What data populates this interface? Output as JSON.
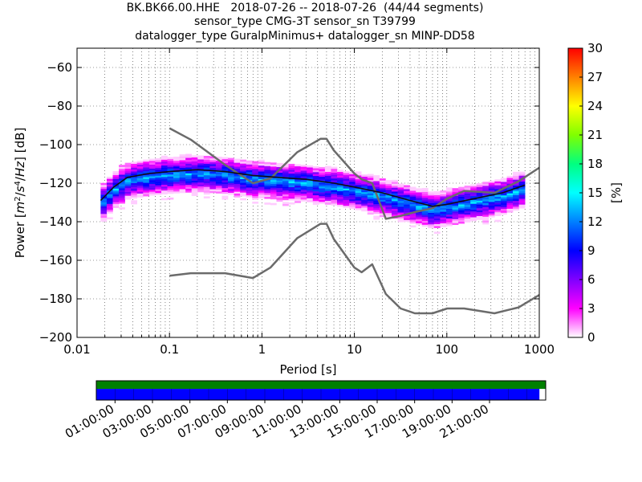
{
  "header": {
    "title_line1": "BK.BK66.00.HHE   2018-07-26 -- 2018-07-26  (44/44 segments)",
    "title_line2": "sensor_type CMG-3T sensor_sn T39799",
    "title_line3": "datalogger_type GuralpMinimus+ datalogger_sn MINP-DD58"
  },
  "colors": {
    "noise_model": "#6b6b6b",
    "mean_curve": "#111111",
    "coverage_available": "#008000",
    "coverage_data": "#0000ff"
  },
  "chart_data": [
    {
      "type": "heatmap",
      "xlabel": "Period [s]",
      "ylabel": "Power [m²/s⁴/Hz] [dB]",
      "xscale": "log",
      "xlim": [
        0.01,
        1000
      ],
      "ylim": [
        -200,
        -50
      ],
      "x_ticks": [
        "0.01",
        "0.1",
        "1",
        "10",
        "100",
        "1000"
      ],
      "x_tick_values": [
        0.01,
        0.1,
        1,
        10,
        100,
        1000
      ],
      "y_ticks": [
        "−200",
        "−180",
        "−160",
        "−140",
        "−120",
        "−100",
        "−80",
        "−60"
      ],
      "y_tick_values": [
        -200,
        -180,
        -160,
        -140,
        -120,
        -100,
        -80,
        -60
      ],
      "grid": true,
      "colorbar": {
        "label": "[%]",
        "range": [
          0,
          30
        ],
        "ticks": [
          "0",
          "3",
          "6",
          "9",
          "12",
          "15",
          "18",
          "21",
          "24",
          "27",
          "30"
        ],
        "tick_values": [
          0,
          3,
          6,
          9,
          12,
          15,
          18,
          21,
          24,
          27,
          30
        ],
        "colormap": [
          "#ffffff",
          "#ff00ff",
          "#7f00ff",
          "#0000ff",
          "#0080ff",
          "#00ffff",
          "#00ff80",
          "#80ff00",
          "#ffff00",
          "#ff8000",
          "#ff0000"
        ]
      },
      "series": [
        {
          "role": "high_noise_model",
          "x": [
            0.1,
            0.17,
            0.4,
            0.8,
            1.24,
            2.4,
            4.3,
            5.0,
            6.0,
            10.0,
            12.0,
            15.6,
            21.9,
            31.6,
            45.0,
            70.0,
            101.0,
            154.0,
            328.0,
            600.0,
            1000.0
          ],
          "y": [
            -91.5,
            -97.4,
            -110.5,
            -120.0,
            -117.5,
            -104.0,
            -97.0,
            -97.0,
            -103.0,
            -115.0,
            -118.0,
            -120.0,
            -138.5,
            -137.0,
            -135.0,
            -133.0,
            -128.0,
            -124.0,
            -125.0,
            -119.0,
            -112.0
          ]
        },
        {
          "role": "low_noise_model",
          "x": [
            0.1,
            0.17,
            0.4,
            0.8,
            1.24,
            2.4,
            4.3,
            5.0,
            6.0,
            10.0,
            12.0,
            15.6,
            21.9,
            31.6,
            45.0,
            70.0,
            101.0,
            154.0,
            328.0,
            600.0,
            1000.0
          ],
          "y": [
            -168.0,
            -166.7,
            -166.7,
            -169.2,
            -163.7,
            -148.6,
            -141.1,
            -141.1,
            -149.0,
            -163.8,
            -166.2,
            -162.1,
            -177.5,
            -185.0,
            -187.5,
            -187.5,
            -185.0,
            -185.0,
            -187.5,
            -184.4,
            -178.0
          ]
        },
        {
          "role": "mean_psd",
          "x": [
            0.018,
            0.025,
            0.035,
            0.06,
            0.1,
            0.2,
            0.4,
            0.8,
            1.5,
            3.0,
            6.0,
            10.0,
            20.0,
            40.0,
            70.0,
            100.0,
            200.0,
            400.0,
            700.0
          ],
          "y": [
            -129,
            -122,
            -117,
            -115,
            -114,
            -113,
            -114,
            -116,
            -117,
            -118,
            -120,
            -122,
            -125,
            -129,
            -132,
            -131,
            -128,
            -125,
            -121
          ]
        }
      ]
    },
    {
      "type": "bar",
      "x_ticks": [
        "01:00:00",
        "03:00:00",
        "05:00:00",
        "07:00:00",
        "09:00:00",
        "11:00:00",
        "13:00:00",
        "15:00:00",
        "17:00:00",
        "19:00:00",
        "21:00:00"
      ],
      "tick_hours": [
        1,
        3,
        5,
        7,
        9,
        11,
        13,
        15,
        17,
        19,
        21
      ],
      "available_fraction": 1.0,
      "data_fraction": 0.986
    }
  ]
}
